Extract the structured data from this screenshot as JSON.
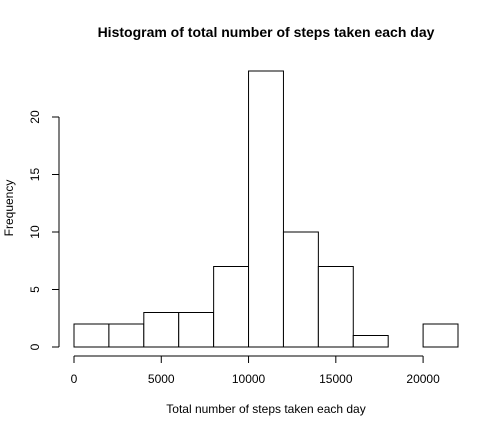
{
  "chart_data": {
    "type": "bar",
    "title": "Histogram of total number of steps taken each day",
    "xlabel": "Total number of steps taken each day",
    "ylabel": "Frequency",
    "bins": [
      {
        "start": 0,
        "end": 2000,
        "count": 2
      },
      {
        "start": 2000,
        "end": 4000,
        "count": 2
      },
      {
        "start": 4000,
        "end": 6000,
        "count": 3
      },
      {
        "start": 6000,
        "end": 8000,
        "count": 3
      },
      {
        "start": 8000,
        "end": 10000,
        "count": 7
      },
      {
        "start": 10000,
        "end": 12000,
        "count": 24
      },
      {
        "start": 12000,
        "end": 14000,
        "count": 10
      },
      {
        "start": 14000,
        "end": 16000,
        "count": 7
      },
      {
        "start": 16000,
        "end": 18000,
        "count": 1
      },
      {
        "start": 18000,
        "end": 20000,
        "count": 0
      },
      {
        "start": 20000,
        "end": 22000,
        "count": 2
      }
    ],
    "xlim": [
      0,
      22000
    ],
    "ylim": [
      0,
      24
    ],
    "x_ticks": [
      0,
      5000,
      10000,
      15000,
      20000
    ],
    "x_tick_labels": [
      "0",
      "5000",
      "10000",
      "15000",
      "20000"
    ],
    "y_ticks": [
      0,
      5,
      10,
      15,
      20
    ],
    "y_tick_labels": [
      "0",
      "5",
      "10",
      "15",
      "20"
    ],
    "grid": false,
    "colors": {
      "bar_fill": "#ffffff",
      "bar_stroke": "#000000"
    }
  }
}
